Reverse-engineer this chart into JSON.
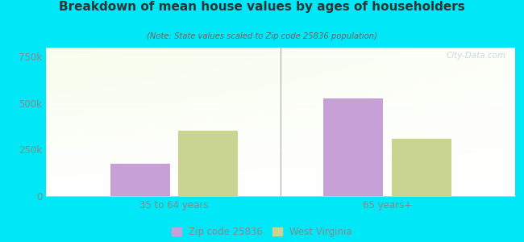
{
  "title": "Breakdown of mean house values by ages of householders",
  "subtitle": "(Note: State values scaled to Zip code 25836 population)",
  "categories": [
    "35 to 64 years",
    "65 years+"
  ],
  "zip_values": [
    175000,
    525000
  ],
  "wv_values": [
    350000,
    310000
  ],
  "ylim": [
    0,
    800000
  ],
  "yticks": [
    0,
    250000,
    500000,
    750000
  ],
  "ytick_labels": [
    "0",
    "250k",
    "500k",
    "750k"
  ],
  "zip_color": "#c8a0d8",
  "wv_color": "#c8d490",
  "background_outer": "#00e8f8",
  "bg_top_left": "#d8f0d8",
  "bg_top_right": "#f0f8f8",
  "bg_bottom": "#ffffff",
  "title_color": "#333333",
  "subtitle_color": "#666666",
  "tick_color": "#888888",
  "legend_zip_label": "Zip code 25836",
  "legend_wv_label": "West Virginia",
  "watermark": "City-Data.com",
  "bar_width": 0.28,
  "grid_color": "#dddddd"
}
